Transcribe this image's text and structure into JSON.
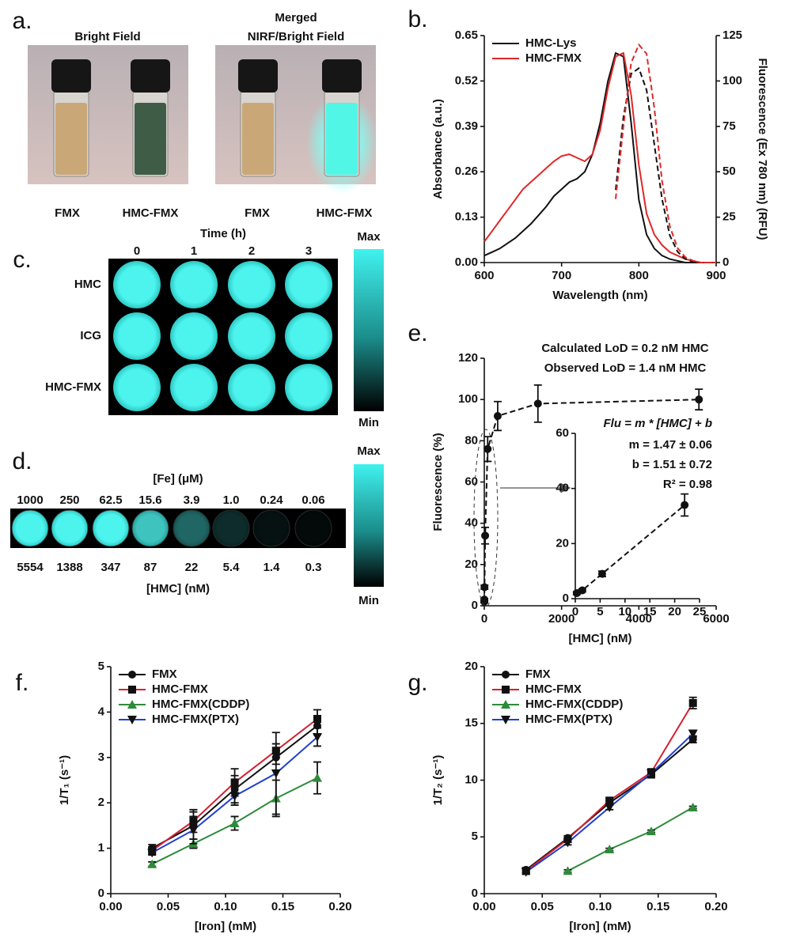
{
  "panels": {
    "a": {
      "label": "a.",
      "left_title": "Bright Field",
      "right_title": [
        "Merged",
        "NIRF/Bright Field"
      ],
      "vial_labels": [
        "FMX",
        "HMC-FMX",
        "FMX",
        "HMC-FMX"
      ]
    },
    "c": {
      "label": "c.",
      "axis_title": "Time (h)",
      "columns": [
        "0",
        "1",
        "2",
        "3"
      ],
      "rows": [
        "HMC",
        "ICG",
        "HMC-FMX"
      ],
      "colorbar": [
        "Max",
        "Min"
      ]
    },
    "d": {
      "label": "d.",
      "fe_title": "[Fe] (μM)",
      "fe": [
        "1000",
        "250",
        "62.5",
        "15.6",
        "3.9",
        "1.0",
        "0.24",
        "0.06"
      ],
      "hmc": [
        "5554",
        "1388",
        "347",
        "87",
        "22",
        "5.4",
        "1.4",
        "0.3"
      ],
      "hmc_title": "[HMC] (nM)",
      "colorbar": [
        "Max",
        "Min"
      ]
    }
  },
  "chart_data": [
    {
      "type": "line",
      "label": "b.",
      "xlabel": "Wavelength (nm)",
      "ylabel": "Absorbance (a.u.)",
      "y2label": "Fluorescence (Ex 780 nm) (RFU)",
      "x": [
        600,
        610,
        620,
        630,
        640,
        650,
        660,
        670,
        680,
        690,
        700,
        710,
        720,
        730,
        740,
        750,
        760,
        770,
        780,
        790,
        800,
        810,
        820,
        830,
        840,
        850,
        860,
        870,
        880,
        890,
        900
      ],
      "xlim": [
        600,
        900
      ],
      "xticks": [
        600,
        700,
        800,
        900
      ],
      "ylim": [
        0,
        0.65
      ],
      "yticks": [
        {
          "value": 0,
          "label": "0.00"
        },
        0.13,
        0.26,
        0.39,
        0.52,
        0.65
      ],
      "y2lim": [
        0,
        125
      ],
      "y2ticks": [
        0,
        25,
        50,
        75,
        100,
        125
      ],
      "legend": "upper left",
      "series": [
        {
          "name": "HMC-Lys",
          "color": "#111111",
          "linestyle": "solid",
          "values": [
            0.02,
            0.03,
            0.04,
            0.055,
            0.07,
            0.09,
            0.11,
            0.135,
            0.16,
            0.19,
            0.21,
            0.23,
            0.24,
            0.26,
            0.31,
            0.4,
            0.52,
            0.6,
            0.59,
            0.4,
            0.18,
            0.08,
            0.04,
            0.02,
            0.01,
            0.005,
            0,
            0,
            0,
            0,
            0
          ]
        },
        {
          "name": "HMC-FMX",
          "color": "#e02828",
          "linestyle": "solid",
          "values": [
            0.06,
            0.09,
            0.12,
            0.15,
            0.18,
            0.21,
            0.23,
            0.25,
            0.27,
            0.29,
            0.305,
            0.31,
            0.3,
            0.29,
            0.31,
            0.38,
            0.5,
            0.59,
            0.6,
            0.48,
            0.28,
            0.14,
            0.08,
            0.05,
            0.03,
            0.02,
            0.01,
            0.005,
            0,
            0,
            0
          ]
        },
        {
          "color": "#111111",
          "linestyle": "dashed",
          "axis": "y2",
          "values": [
            null,
            null,
            null,
            null,
            null,
            null,
            null,
            null,
            null,
            null,
            null,
            null,
            null,
            null,
            null,
            null,
            null,
            40,
            80,
            104,
            107,
            95,
            65,
            35,
            15,
            6,
            2,
            0.5,
            0,
            0,
            0
          ]
        },
        {
          "color": "#e02828",
          "linestyle": "dashed",
          "axis": "y2",
          "values": [
            null,
            null,
            null,
            null,
            null,
            null,
            null,
            null,
            null,
            null,
            null,
            null,
            null,
            null,
            null,
            null,
            null,
            35,
            75,
            110,
            120,
            115,
            85,
            45,
            20,
            8,
            3,
            1,
            0,
            0,
            0
          ]
        }
      ]
    },
    {
      "type": "scatter",
      "label": "e.",
      "xlabel": "[HMC] (nM)",
      "ylabel": "Fluorescence (%)",
      "annotations": [
        "Calculated LoD  = 0.2 nM HMC",
        "Observed LoD = 1.4 nM HMC",
        "Flu = m * [HMC] + b",
        "m = 1.47 ± 0.06",
        "b = 1.51 ± 0.72",
        "R² = 0.98"
      ],
      "x": [
        0.3,
        1.4,
        5.4,
        22,
        87,
        347,
        1388,
        5554
      ],
      "xlim": [
        0,
        6000
      ],
      "xticks": [
        0,
        2000,
        4000,
        6000
      ],
      "ylim": [
        0,
        120
      ],
      "yticks": [
        0,
        20,
        40,
        60,
        80,
        100,
        120
      ],
      "series": [
        {
          "color": "#111111",
          "marker": "circle",
          "linestyle": "dashed",
          "values": [
            2,
            3,
            9,
            34,
            76,
            92,
            98,
            100
          ],
          "errors": [
            0.5,
            0.5,
            1,
            4,
            6,
            7,
            9,
            5
          ]
        }
      ],
      "inset": {
        "xlim": [
          0,
          25
        ],
        "xticks": [
          0,
          5,
          10,
          15,
          20,
          25
        ],
        "ylim": [
          0,
          60
        ],
        "yticks": [
          0,
          20,
          40,
          60
        ]
      }
    },
    {
      "type": "scatter",
      "label": "f.",
      "xlabel": "[Iron] (mM)",
      "ylabel": "1/T₁ (s⁻¹)",
      "x": [
        0.036,
        0.072,
        0.108,
        0.144,
        0.18
      ],
      "xlim": [
        0,
        0.2
      ],
      "xticks": [
        {
          "value": 0,
          "label": "0.00"
        },
        0.05,
        {
          "value": 0.1,
          "label": "0.10"
        },
        0.15,
        {
          "value": 0.2,
          "label": "0.20"
        }
      ],
      "ylim": [
        0,
        5
      ],
      "yticks": [
        0,
        1,
        2,
        3,
        4,
        5
      ],
      "legend": "upper left",
      "series": [
        {
          "name": "FMX",
          "color": "#111111",
          "marker_color": "#111111",
          "marker": "circle",
          "linestyle": "solid",
          "values": [
            1.0,
            1.5,
            2.3,
            3.0,
            3.7
          ],
          "errors": [
            0.08,
            0.3,
            0.3,
            0.15,
            0.2
          ]
        },
        {
          "name": "HMC-FMX",
          "color": "#d42030",
          "marker_color": "#111111",
          "marker": "square",
          "linestyle": "solid",
          "values": [
            0.95,
            1.6,
            2.45,
            3.15,
            3.85
          ],
          "errors": [
            0.08,
            0.25,
            0.3,
            0.15,
            0.2
          ]
        },
        {
          "name": "HMC-FMX(CDDP)",
          "color": "#2e8b3a",
          "marker_color": "#2e8b3a",
          "marker": "triangle",
          "linestyle": "solid",
          "values": [
            0.65,
            1.1,
            1.55,
            2.1,
            2.55
          ],
          "errors": [
            0.05,
            0.1,
            0.15,
            0.4,
            0.35
          ]
        },
        {
          "name": "HMC-FMX(PTX)",
          "color": "#2040d0",
          "marker_color": "#111111",
          "marker": "triangle-down",
          "linestyle": "solid",
          "values": [
            0.9,
            1.4,
            2.15,
            2.65,
            3.45
          ],
          "errors": [
            0.05,
            0.3,
            0.2,
            0.9,
            0.2
          ]
        }
      ]
    },
    {
      "type": "scatter",
      "label": "g.",
      "xlabel": "[Iron] (mM)",
      "ylabel": "1/T₂ (s⁻¹)",
      "x": [
        0.036,
        0.072,
        0.108,
        0.144,
        0.18
      ],
      "xlim": [
        0,
        0.2
      ],
      "xticks": [
        {
          "value": 0,
          "label": "0.00"
        },
        0.05,
        {
          "value": 0.1,
          "label": "0.10"
        },
        0.15,
        {
          "value": 0.2,
          "label": "0.20"
        }
      ],
      "ylim": [
        0,
        20
      ],
      "yticks": [
        0,
        5,
        10,
        15,
        20
      ],
      "legend": "upper left",
      "series": [
        {
          "name": "FMX",
          "color": "#111111",
          "marker_color": "#111111",
          "marker": "circle",
          "linestyle": "solid",
          "values": [
            2.1,
            4.9,
            8.0,
            10.5,
            13.6
          ],
          "errors": [
            0.2,
            0.2,
            0.2,
            0.3,
            0.3
          ]
        },
        {
          "name": "HMC-FMX",
          "color": "#d42030",
          "marker_color": "#111111",
          "marker": "square",
          "linestyle": "solid",
          "values": [
            2.0,
            4.8,
            8.2,
            10.7,
            16.8
          ],
          "errors": [
            0.2,
            0.2,
            0.2,
            0.3,
            0.5
          ]
        },
        {
          "name": "HMC-FMX(CDDP)",
          "color": "#2e8b3a",
          "marker_color": "#2e8b3a",
          "marker": "triangle",
          "linestyle": "solid",
          "values": [
            null,
            2.0,
            3.9,
            5.5,
            7.6
          ],
          "errors": [
            null,
            0.1,
            0.1,
            0.1,
            0.1
          ]
        },
        {
          "name": "HMC-FMX(PTX)",
          "color": "#2040d0",
          "marker_color": "#111111",
          "marker": "triangle-down",
          "linestyle": "solid",
          "values": [
            1.9,
            4.5,
            7.6,
            10.6,
            14.1
          ],
          "errors": [
            0.2,
            0.2,
            0.2,
            0.3,
            0.3
          ]
        }
      ]
    }
  ]
}
